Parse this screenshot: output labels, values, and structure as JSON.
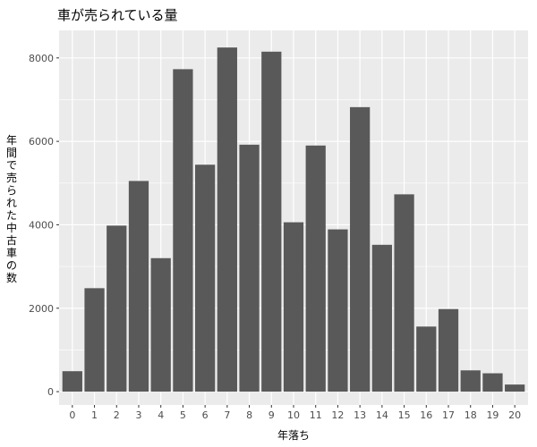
{
  "chart_data": {
    "type": "bar",
    "title": "車が売られている量",
    "xlabel": "年落ち",
    "ylabel": "年間で売られた中古車の数",
    "categories": [
      "0",
      "1",
      "2",
      "3",
      "4",
      "5",
      "6",
      "7",
      "8",
      "9",
      "10",
      "11",
      "12",
      "13",
      "14",
      "15",
      "16",
      "17",
      "18",
      "19",
      "20"
    ],
    "values": [
      490,
      2480,
      3980,
      5050,
      3200,
      7730,
      5440,
      8250,
      5920,
      8150,
      4060,
      5900,
      3890,
      6820,
      3520,
      4730,
      1560,
      1980,
      510,
      440,
      170
    ],
    "ylim": [
      -320,
      8660
    ],
    "yticks": [
      0,
      2000,
      4000,
      6000,
      8000
    ],
    "grid": true,
    "legend": "none",
    "colors": {
      "panel_background": "#ebebeb",
      "gridline": "#ffffff",
      "bar_fill": "#595959",
      "tick_text": "#4d4d4d",
      "tick_mark": "#333333"
    }
  }
}
